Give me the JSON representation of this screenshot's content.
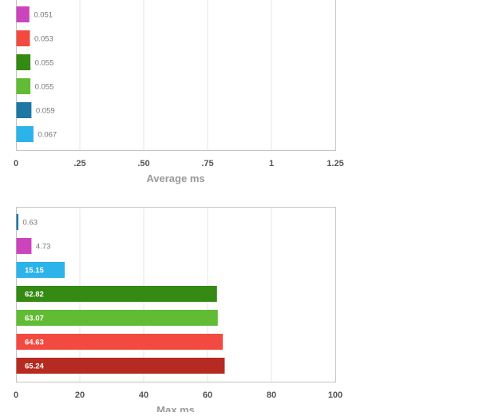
{
  "chart_data": [
    {
      "type": "bar",
      "orientation": "horizontal",
      "xlabel": "Average ms",
      "xlim": [
        0,
        1.25
      ],
      "ticks": [
        0,
        0.25,
        0.5,
        0.75,
        1,
        1.25
      ],
      "tick_labels": [
        "0",
        ".25",
        ".50",
        ".75",
        "1",
        "1.25"
      ],
      "grid": true,
      "bars": [
        {
          "value": 0.051,
          "label": "0.051",
          "color": "#cc44bb"
        },
        {
          "value": 0.053,
          "label": "0.053",
          "color": "#f24a40"
        },
        {
          "value": 0.055,
          "label": "0.055",
          "color": "#348a12"
        },
        {
          "value": 0.055,
          "label": "0.055",
          "color": "#62bb35"
        },
        {
          "value": 0.059,
          "label": "0.059",
          "color": "#1f77a3"
        },
        {
          "value": 0.067,
          "label": "0.067",
          "color": "#2cb3ea"
        }
      ]
    },
    {
      "type": "bar",
      "orientation": "horizontal",
      "xlabel": "Max ms",
      "xlim": [
        0,
        100
      ],
      "ticks": [
        0,
        20,
        40,
        60,
        80,
        100
      ],
      "tick_labels": [
        "0",
        "20",
        "40",
        "60",
        "80",
        "100"
      ],
      "grid": true,
      "bars": [
        {
          "value": 0.63,
          "label": "0.63",
          "color": "#1f77a3"
        },
        {
          "value": 4.73,
          "label": "4.73",
          "color": "#cc44bb"
        },
        {
          "value": 15.15,
          "label": "15.15",
          "color": "#2cb3ea"
        },
        {
          "value": 62.82,
          "label": "62.82",
          "color": "#348a12"
        },
        {
          "value": 63.07,
          "label": "63.07",
          "color": "#62bb35"
        },
        {
          "value": 64.63,
          "label": "64.63",
          "color": "#f24a40"
        },
        {
          "value": 65.24,
          "label": "65.24",
          "color": "#b52b22"
        }
      ]
    }
  ]
}
